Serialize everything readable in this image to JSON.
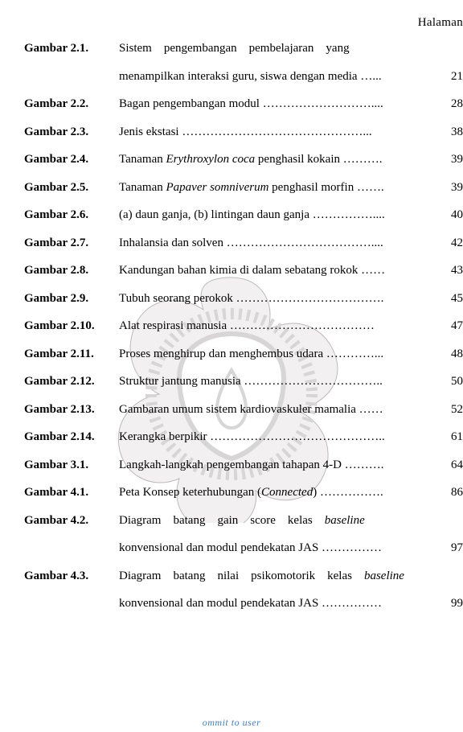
{
  "header": {
    "page_label": "Halaman"
  },
  "footer": {
    "text": "ommit to user"
  },
  "watermark": {
    "outer_fill": "#f2f0f0",
    "outer_stroke": "#bdbaba",
    "inner_fill": "#ffffff",
    "size": 320,
    "badge_fill": "#d7d5d5"
  },
  "entries": [
    {
      "label": "Gambar 2.1.",
      "lines": [
        "Sistem pengembangan pembelajaran yang",
        "menampilkan interaksi guru, siswa dengan media …..."
      ],
      "page": "21"
    },
    {
      "label": "Gambar 2.2.",
      "lines": [
        "Bagan pengembangan modul ………………………...."
      ],
      "page": "28"
    },
    {
      "label": "Gambar 2.3.",
      "lines": [
        "Jenis ekstasi ………………………………………..."
      ],
      "page": "38"
    },
    {
      "label": "Gambar  2.4.",
      "lines": [
        "Tanaman <span class=\"italic\">Erythroxylon coca</span> penghasil kokain ………."
      ],
      "page": "39"
    },
    {
      "label": "Gambar  2.5.",
      "lines": [
        "Tanaman <span class=\"italic\">Papaver somniverum</span> penghasil morfin ……."
      ],
      "page": "39"
    },
    {
      "label": "Gambar  2.6.",
      "lines": [
        "(a) daun ganja, (b) lintingan daun ganja ……………...."
      ],
      "page": "40"
    },
    {
      "label": "Gambar  2.7.",
      "lines": [
        "Inhalansia dan solven ………………………………...."
      ],
      "page": "42"
    },
    {
      "label": "Gambar  2.8.",
      "lines": [
        "Kandungan bahan kimia di dalam sebatang rokok ……"
      ],
      "page": "43"
    },
    {
      "label": "Gambar  2.9.",
      "lines": [
        "Tubuh seorang perokok ………………………………."
      ],
      "page": "45"
    },
    {
      "label": "Gambar  2.10.",
      "lines": [
        "Alat respirasi manusia ………………………………"
      ],
      "page": "47"
    },
    {
      "label": "Gambar  2.11.",
      "lines": [
        "Proses menghirup dan menghembus udara …………..."
      ],
      "page": "48"
    },
    {
      "label": "Gambar  2.12.",
      "lines": [
        "Struktur  jantung manusia …………………………….."
      ],
      "page": "50"
    },
    {
      "label": "Gambar  2.13.",
      "lines": [
        "Gambaran umum sistem kardiovaskuler mamalia ……"
      ],
      "page": "52"
    },
    {
      "label": "Gambar  2.14.",
      "lines": [
        "Kerangka berpikir …………………………………….."
      ],
      "page": "61"
    },
    {
      "label": "Gambar  3.1.",
      "lines": [
        "Langkah-langkah pengembangan tahapan 4-D ………."
      ],
      "page": "64"
    },
    {
      "label": "Gambar  4.1.",
      "lines": [
        "Peta Konsep keterhubungan (<span class=\"italic\">Connected</span>) ……………."
      ],
      "page": "86"
    },
    {
      "label": "Gambar  4.2.",
      "lines": [
        "Diagram batang gain score kelas <span class=\"italic\">baseline</span>",
        "konvensional dan modul pendekatan JAS ……………"
      ],
      "page": "97"
    },
    {
      "label": "Gambar  4.3.",
      "lines": [
        "Diagram batang nilai psikomotorik kelas <span class=\"italic\">baseline</span>",
        "konvensional dan modul pendekatan JAS ……………"
      ],
      "page": "99"
    }
  ]
}
